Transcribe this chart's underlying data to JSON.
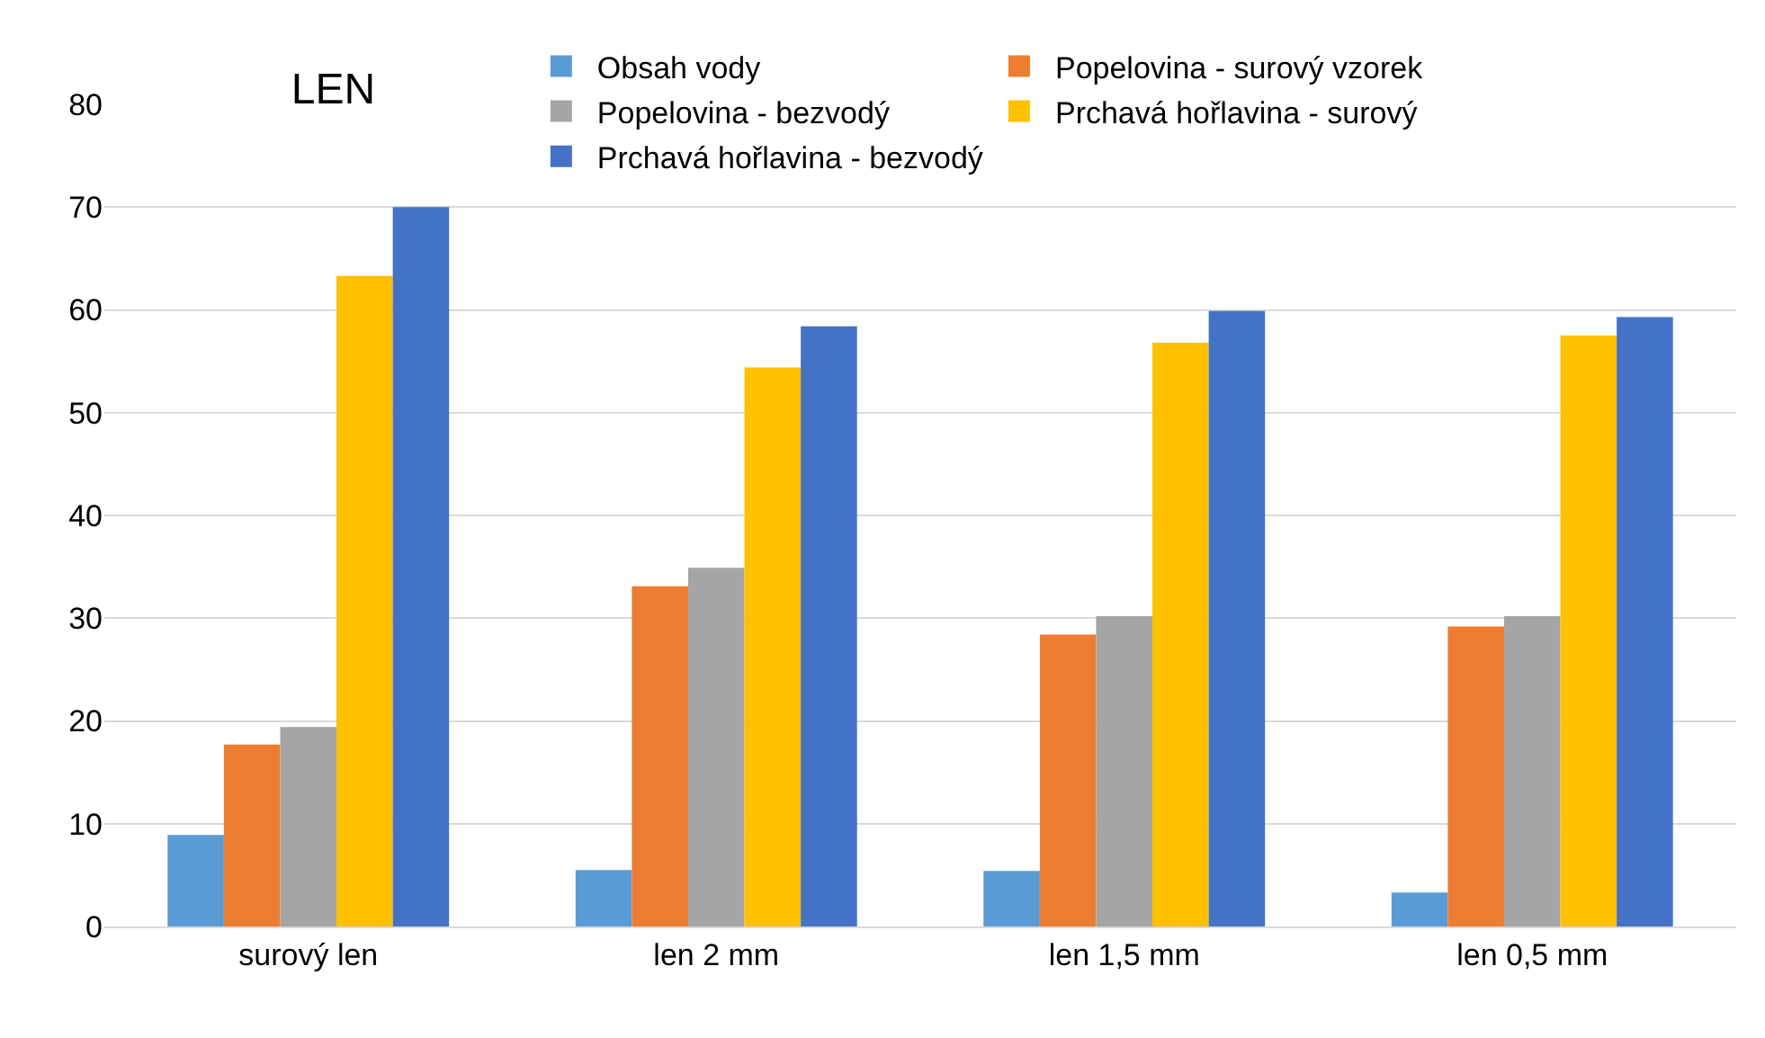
{
  "chart_data": {
    "type": "bar",
    "title": "LEN",
    "categories": [
      "surový len",
      "len 2 mm",
      "len 1,5 mm",
      "len 0,5 mm"
    ],
    "series": [
      {
        "name": "Obsah vody",
        "color": "#5b9bd5",
        "values": [
          8.9,
          5.5,
          5.4,
          3.3
        ]
      },
      {
        "name": "Popelovina - surový vzorek",
        "color": "#ed7d31",
        "values": [
          17.7,
          33.1,
          28.4,
          29.2
        ]
      },
      {
        "name": "Popelovina - bezvodý",
        "color": "#a5a5a5",
        "values": [
          19.4,
          34.9,
          30.2,
          30.2
        ]
      },
      {
        "name": "Prchavá hořlavina - surový",
        "color": "#ffc000",
        "values": [
          63.3,
          54.4,
          56.8,
          57.5
        ]
      },
      {
        "name": "Prchavá hořlavina - bezvodý",
        "color": "#4472c4",
        "values": [
          70,
          58.4,
          59.9,
          59.3
        ]
      }
    ],
    "ylim": [
      0,
      80
    ],
    "yticks": [
      0,
      10,
      20,
      30,
      40,
      50,
      60,
      70,
      80
    ],
    "grid": "y",
    "legend": "top right"
  }
}
